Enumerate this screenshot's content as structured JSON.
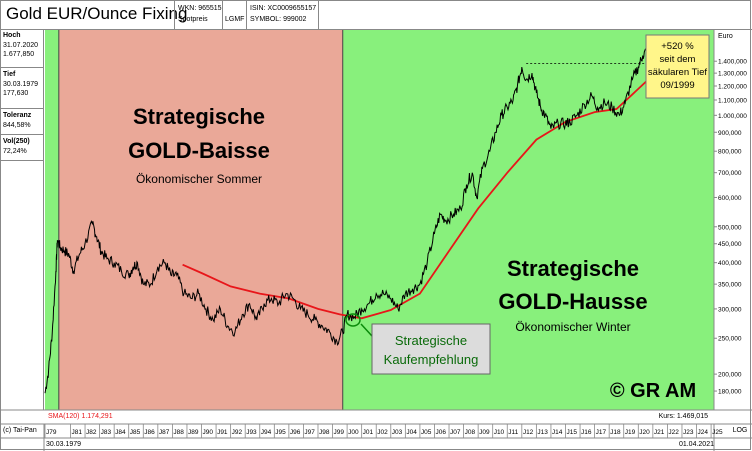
{
  "header": {
    "title": "Gold EUR/Ounce Fixing",
    "wkn": "WKN: 965515",
    "spotpreis": "Spotpreis",
    "isin": "ISIN: XC0009655157",
    "lgmf": "LGMF",
    "symbol": "SYMBOL: 999002"
  },
  "sidebar": {
    "hoch_label": "Hoch",
    "hoch_date": "31.07.2020",
    "hoch_value": "1.677,850",
    "tief_label": "Tief",
    "tief_date": "30.03.1979",
    "tief_value": "177,630",
    "toleranz_label": "Toleranz",
    "toleranz_value": "844,58%",
    "vol_label": "Vol(250)",
    "vol_value": "72,24%"
  },
  "footer": {
    "sma_label": "SMA(120) 1.174,291",
    "kurs_label": "Kurs: 1.469,015",
    "copyright_source": "(c) Tai-Pan",
    "start_date": "30.03.1979",
    "end_date": "01.04.2021",
    "scale_mode": "LOG"
  },
  "annotations": {
    "baisse_line1": "Strategische",
    "baisse_line2": "GOLD-Baisse",
    "baisse_sub": "Ökonomischer Sommer",
    "hausse_line1": "Strategische",
    "hausse_line2": "GOLD-Hausse",
    "hausse_sub": "Ökonomischer Winter",
    "kauf_line1": "Strategische",
    "kauf_line2": "Kaufempfehlung",
    "gain_line1": "+520 %",
    "gain_line2": "seit dem",
    "gain_line3": "säkularen Tief",
    "gain_line4": "09/1999",
    "copyright": "© GR AM"
  },
  "colors": {
    "baisse_zone": "#eaa898",
    "hausse_zone": "#88f07c",
    "price_line": "#000000",
    "sma_line": "#e8161a",
    "baisse_text": "#ff0000",
    "hausse_text": "#0a8a0a",
    "gain_box": "#fff68a"
  },
  "chart_data": {
    "type": "line",
    "y_scale": "log",
    "y_unit": "Euro",
    "y_ticks": [
      180,
      200,
      250,
      300,
      350,
      400,
      450,
      500,
      600,
      700,
      800,
      900,
      1000,
      1100,
      1200,
      1300,
      1400
    ],
    "y_tick_labels": [
      "180,000",
      "200,000",
      "250,000",
      "300,000",
      "350,000",
      "400,000",
      "450,000",
      "500,000",
      "600,000",
      "700,000",
      "800,000",
      "900,000",
      "1.000,000",
      "1.100,000",
      "1.200,000",
      "1.300,000",
      "1.400,000"
    ],
    "x_ticks": [
      "J79",
      "J81",
      "J82",
      "J83",
      "J84",
      "J85",
      "J86",
      "J87",
      "J88",
      "J89",
      "J90",
      "J91",
      "J92",
      "J93",
      "J94",
      "J95",
      "J96",
      "J97",
      "J98",
      "J99",
      "J00",
      "J01",
      "J02",
      "J03",
      "J04",
      "J05",
      "J06",
      "J07",
      "J08",
      "J09",
      "J10",
      "J11",
      "J12",
      "J13",
      "J14",
      "J15",
      "J16",
      "J17",
      "J18",
      "J19",
      "J20",
      "J21",
      "J22",
      "J23",
      "J24",
      "J25"
    ],
    "zones": [
      {
        "name": "Strategische GOLD-Baisse",
        "from": 1980.2,
        "to": 1999.7
      },
      {
        "name": "Strategische GOLD-Hausse",
        "from": 1999.7,
        "to": 2025.2
      }
    ],
    "series": [
      {
        "name": "Gold EUR/Ounce Fixing",
        "x": [
          1979.25,
          1979.5,
          1979.75,
          1980.0,
          1980.1,
          1980.3,
          1980.6,
          1980.9,
          1981.2,
          1981.6,
          1982.0,
          1982.5,
          1982.8,
          1983.1,
          1983.5,
          1984.0,
          1984.5,
          1985.0,
          1985.3,
          1985.6,
          1986.0,
          1986.5,
          1987.0,
          1987.5,
          1987.9,
          1988.3,
          1988.8,
          1989.3,
          1989.8,
          1990.3,
          1990.8,
          1991.3,
          1991.8,
          1992.3,
          1992.8,
          1993.3,
          1993.8,
          1994.3,
          1994.8,
          1995.3,
          1995.8,
          1996.3,
          1996.8,
          1997.3,
          1997.8,
          1998.3,
          1998.8,
          1999.3,
          1999.7,
          2000.0,
          2000.5,
          2001.0,
          2001.5,
          2002.0,
          2002.5,
          2003.0,
          2003.5,
          2004.0,
          2004.5,
          2005.0,
          2005.5,
          2006.0,
          2006.4,
          2006.8,
          2007.3,
          2007.8,
          2008.2,
          2008.6,
          2008.9,
          2009.3,
          2009.8,
          2010.2,
          2010.6,
          2011.0,
          2011.4,
          2011.7,
          2012.0,
          2012.3,
          2012.7,
          2013.0,
          2013.3,
          2013.6,
          2014.0,
          2014.5,
          2015.0,
          2015.3,
          2015.8,
          2016.3,
          2016.8,
          2017.2,
          2017.7,
          2018.2,
          2018.7,
          2019.1,
          2019.6,
          2020.0,
          2020.3,
          2020.6,
          2020.8,
          2021.0,
          2021.25
        ],
        "values": [
          177.6,
          205,
          260,
          380,
          460,
          440,
          430,
          420,
          380,
          420,
          450,
          510,
          470,
          430,
          410,
          400,
          380,
          370,
          390,
          400,
          350,
          350,
          390,
          400,
          370,
          370,
          330,
          320,
          330,
          300,
          280,
          300,
          270,
          260,
          290,
          310,
          280,
          310,
          320,
          310,
          330,
          320,
          300,
          290,
          280,
          270,
          260,
          245,
          260,
          290,
          285,
          300,
          310,
          330,
          330,
          320,
          300,
          330,
          340,
          350,
          400,
          480,
          540,
          520,
          540,
          560,
          650,
          700,
          600,
          720,
          800,
          900,
          1000,
          1050,
          1100,
          1200,
          1350,
          1250,
          1300,
          1150,
          1050,
          1000,
          920,
          950,
          950,
          960,
          1000,
          1070,
          1130,
          1050,
          1080,
          1050,
          1000,
          1080,
          1250,
          1350,
          1450,
          1500,
          1620,
          1550,
          1469
        ]
      },
      {
        "name": "SMA(120)",
        "x": [
          1988.7,
          1990,
          1992,
          1994,
          1996,
          1998,
          1999.5,
          2001,
          2003,
          2005,
          2007,
          2009,
          2011,
          2013,
          2015,
          2017,
          2018.5,
          2019.5,
          2020.5,
          2021.25
        ],
        "values": [
          395,
          375,
          345,
          330,
          320,
          300,
          290,
          283,
          298,
          330,
          430,
          560,
          700,
          860,
          960,
          1020,
          1040,
          1130,
          1230,
          1174
        ]
      }
    ],
    "reference_lines": [
      {
        "type": "horizontal",
        "value": 1380,
        "from": 2012.3,
        "to": 2020.6
      }
    ]
  }
}
